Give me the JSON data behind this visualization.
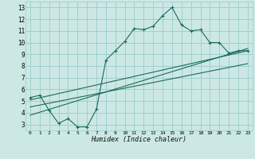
{
  "xlabel": "Humidex (Indice chaleur)",
  "bg_color": "#cce8e4",
  "grid_color": "#99cccc",
  "line_color": "#1a6b5a",
  "marker_color": "#1a6b5a",
  "xlim": [
    -0.5,
    23.5
  ],
  "ylim": [
    2.5,
    13.5
  ],
  "xticks": [
    0,
    1,
    2,
    3,
    4,
    5,
    6,
    7,
    8,
    9,
    10,
    11,
    12,
    13,
    14,
    15,
    16,
    17,
    18,
    19,
    20,
    21,
    22,
    23
  ],
  "yticks": [
    3,
    4,
    5,
    6,
    7,
    8,
    9,
    10,
    11,
    12,
    13
  ],
  "main_x": [
    0,
    1,
    2,
    3,
    4,
    5,
    6,
    7,
    8,
    9,
    10,
    11,
    12,
    13,
    14,
    15,
    16,
    17,
    18,
    19,
    20,
    21,
    22,
    23
  ],
  "main_y": [
    5.3,
    5.5,
    4.2,
    3.1,
    3.5,
    2.8,
    2.8,
    4.3,
    8.5,
    9.3,
    10.1,
    11.2,
    11.1,
    11.4,
    12.3,
    13.0,
    11.5,
    11.0,
    11.1,
    10.0,
    10.0,
    9.1,
    9.3,
    9.3
  ],
  "line1_x": [
    0,
    23
  ],
  "line1_y": [
    5.1,
    9.3
  ],
  "line2_x": [
    0,
    23
  ],
  "line2_y": [
    4.5,
    8.2
  ],
  "line3_x": [
    0,
    23
  ],
  "line3_y": [
    3.8,
    9.5
  ]
}
